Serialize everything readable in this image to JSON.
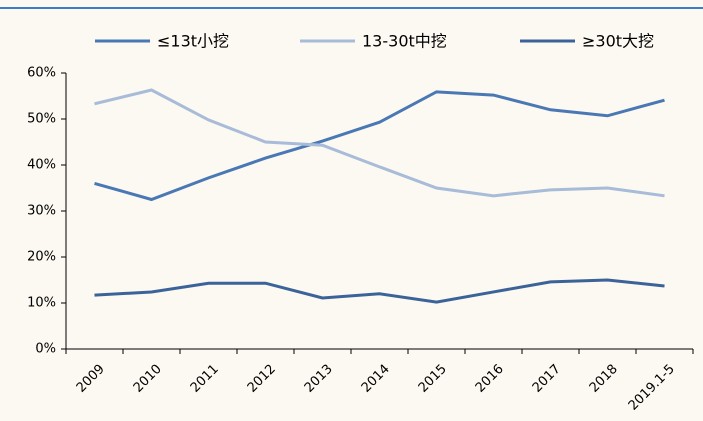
{
  "chart_data": {
    "type": "line",
    "categories": [
      "2009",
      "2010",
      "2011",
      "2012",
      "2013",
      "2014",
      "2015",
      "2016",
      "2017",
      "2018",
      "2019.1-5"
    ],
    "series": [
      {
        "name": "≤13t小挖",
        "color": "#4a78b5",
        "values": [
          36,
          32.5,
          37.2,
          41.5,
          45.2,
          49.3,
          55.9,
          55.2,
          52,
          50.7,
          54.1
        ]
      },
      {
        "name": "13-30t中挖",
        "color": "#a8bbd8",
        "values": [
          53.3,
          56.3,
          49.8,
          45,
          44.3,
          39.6,
          35,
          33.3,
          34.6,
          35,
          33.3
        ]
      },
      {
        "name": "≥30t大挖",
        "color": "#3b6399",
        "values": [
          11.7,
          12.4,
          14.3,
          14.3,
          11.1,
          12,
          10.2,
          12.4,
          14.6,
          15,
          13.7
        ]
      }
    ],
    "ylim": [
      0,
      60
    ],
    "yticks": [
      {
        "value": 0,
        "label": "0%"
      },
      {
        "value": 10,
        "label": "10%"
      },
      {
        "value": 20,
        "label": "20%"
      },
      {
        "value": 30,
        "label": "30%"
      },
      {
        "value": 40,
        "label": "40%"
      },
      {
        "value": 50,
        "label": "50%"
      },
      {
        "value": 60,
        "label": "60%"
      }
    ],
    "grid": false
  }
}
